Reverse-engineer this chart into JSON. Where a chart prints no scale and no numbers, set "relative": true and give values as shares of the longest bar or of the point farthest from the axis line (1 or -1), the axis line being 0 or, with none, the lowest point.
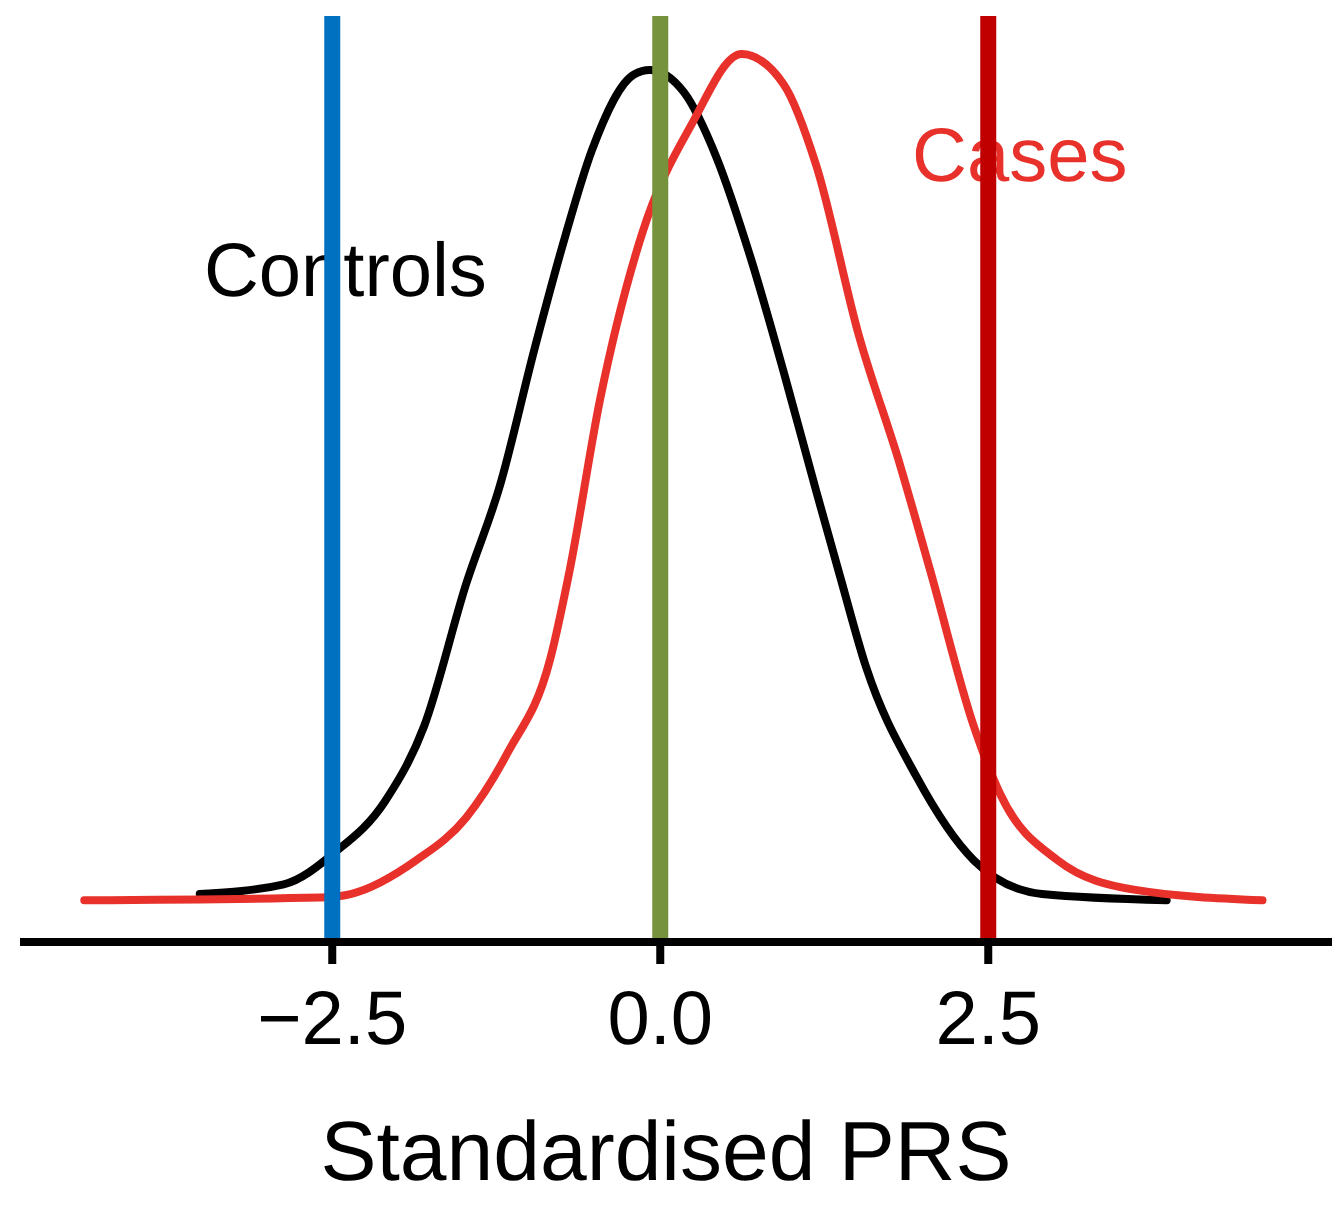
{
  "chart_data": {
    "type": "line",
    "xlabel": "Standardised PRS",
    "relative": true,
    "xlim": [
      -4.88,
      5.12
    ],
    "xticks": [
      {
        "value": -2.5,
        "label": "−2.5"
      },
      {
        "value": 0,
        "label": "0.0"
      },
      {
        "value": 2.5,
        "label": "2.5"
      }
    ],
    "series": [
      {
        "name": "Controls",
        "color": "#000000",
        "x": [
          -3.51,
          -2.87,
          -2.48,
          -2.1,
          -1.8,
          -1.48,
          -1.22,
          -0.96,
          -0.72,
          -0.52,
          -0.2,
          -0.08,
          0.18,
          0.43,
          0.69,
          0.95,
          1.19,
          1.37,
          1.57,
          1.95,
          2.39,
          2.91,
          3.86
        ],
        "values": [
          0.054,
          0.065,
          0.101,
          0.158,
          0.243,
          0.403,
          0.515,
          0.667,
          0.797,
          0.892,
          0.977,
          0.982,
          0.957,
          0.883,
          0.77,
          0.637,
          0.507,
          0.412,
          0.309,
          0.187,
          0.092,
          0.054,
          0.047
        ]
      },
      {
        "name": "Cases",
        "color": "#e8312a",
        "x": [
          -4.39,
          -2.59,
          -2.36,
          -1.86,
          -1.48,
          -1.16,
          -0.84,
          -0.69,
          -0.46,
          -0.14,
          0.24,
          0.62,
          0.94,
          1.19,
          1.51,
          1.83,
          2.06,
          2.39,
          2.59,
          3.03,
          3.61,
          4.59
        ],
        "values": [
          0.047,
          0.05,
          0.054,
          0.092,
          0.14,
          0.214,
          0.318,
          0.419,
          0.61,
          0.797,
          0.921,
          1.0,
          0.966,
          0.874,
          0.685,
          0.536,
          0.417,
          0.243,
          0.167,
          0.092,
          0.059,
          0.047
        ]
      }
    ],
    "ref_lines": [
      {
        "axis": "x",
        "value": -2.5,
        "color": "#0070c0"
      },
      {
        "axis": "x",
        "value": 0,
        "color": "#76923c"
      },
      {
        "axis": "x",
        "value": 2.5,
        "color": "#c00000"
      }
    ]
  }
}
